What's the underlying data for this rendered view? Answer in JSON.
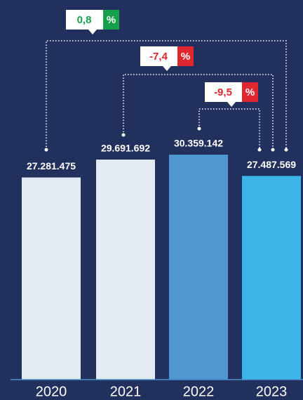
{
  "chart_data": {
    "type": "bar",
    "categories": [
      "2020",
      "2021",
      "2022",
      "2023"
    ],
    "values": [
      27281475,
      29691692,
      30359142,
      27487569
    ],
    "value_labels": [
      "27.281.475",
      "29.691.692",
      "30.359.142",
      "27.487.569"
    ],
    "colors": [
      "#e3ebf2",
      "#e3ebf2",
      "#4f97d1",
      "#3db5e8"
    ],
    "annotations": [
      {
        "text": "0,8",
        "unit": "%",
        "color": "#17a04b"
      },
      {
        "text": "-7,4",
        "unit": "%",
        "color": "#e0262e"
      },
      {
        "text": "-9,5",
        "unit": "%",
        "color": "#e0262e"
      }
    ]
  }
}
